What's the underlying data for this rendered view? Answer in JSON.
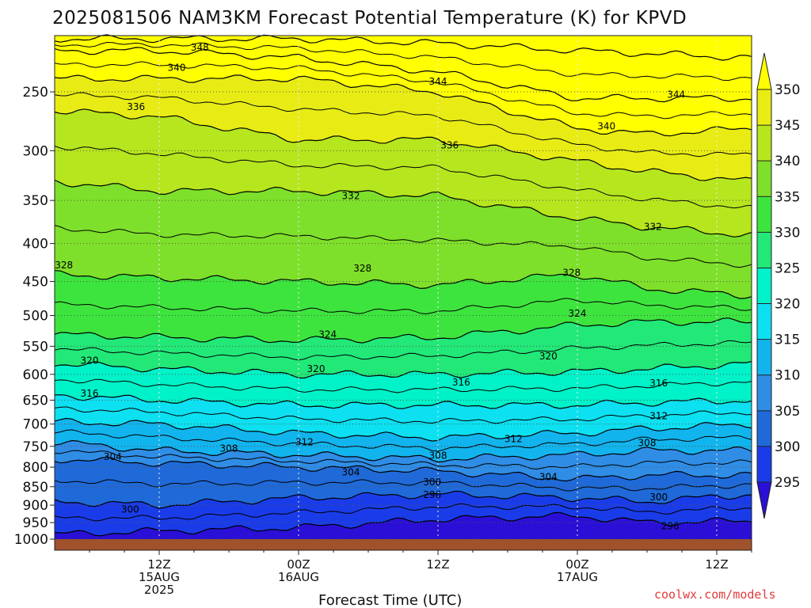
{
  "title": "2025081506 NAM3KM Forecast Potential Temperature (K) for KPVD",
  "x_axis_title": "Forecast Time (UTC)",
  "credit": "coolwx.com/models",
  "colors": {
    "ground": "#a0522d",
    "bands": [
      "#2a0fd6",
      "#1a3ce8",
      "#1f6ad8",
      "#2f8de6",
      "#12b4ee",
      "#0de0f0",
      "#00f2c8",
      "#22e878",
      "#3ee43e",
      "#7ee02a",
      "#b6e61e",
      "#e8ec14",
      "#ffff00"
    ]
  },
  "chart_data": {
    "type": "heatmap",
    "variable": "Potential Temperature (K)",
    "y_scale": "log-pressure (reversed)",
    "y_ticks": [
      250,
      300,
      350,
      400,
      450,
      500,
      550,
      600,
      650,
      700,
      750,
      800,
      850,
      900,
      950,
      1000
    ],
    "y_range": [
      1000,
      210
    ],
    "x_range_hours": [
      -3,
      57
    ],
    "x_ticks": [
      {
        "hour": 6,
        "lines": [
          "12Z",
          "15AUG",
          "2025"
        ]
      },
      {
        "hour": 18,
        "lines": [
          "00Z",
          "16AUG"
        ]
      },
      {
        "hour": 30,
        "lines": [
          "12Z"
        ]
      },
      {
        "hour": 42,
        "lines": [
          "00Z",
          "17AUG"
        ]
      },
      {
        "hour": 54,
        "lines": [
          "12Z"
        ]
      }
    ],
    "grid": true,
    "colorbar": {
      "levels": [
        295,
        300,
        305,
        310,
        315,
        320,
        325,
        330,
        335,
        340,
        345,
        350
      ],
      "labels": [
        "295",
        "300",
        "305",
        "310",
        "315",
        "320",
        "325",
        "330",
        "335",
        "340",
        "345",
        "350"
      ]
    },
    "isentrope_levels": [
      296,
      300,
      304,
      308,
      312,
      316,
      320,
      324,
      328,
      332,
      336,
      340,
      344,
      348
    ],
    "isentrope_pressure_profile": {
      "hours": [
        -3,
        6,
        18,
        30,
        42,
        48,
        57
      ],
      "pressures": {
        "296": [
          985,
          975,
          965,
          940,
          930,
          950,
          945
        ],
        "300": [
          890,
          900,
          880,
          870,
          880,
          890,
          870
        ],
        "304": [
          780,
          790,
          800,
          810,
          830,
          820,
          820
        ],
        "308": [
          740,
          760,
          770,
          780,
          770,
          760,
          760
        ],
        "312": [
          695,
          700,
          720,
          730,
          720,
          710,
          700
        ],
        "316": [
          640,
          650,
          660,
          660,
          660,
          655,
          650
        ],
        "320": [
          580,
          590,
          600,
          600,
          595,
          590,
          580
        ],
        "324": [
          530,
          535,
          540,
          535,
          515,
          510,
          510
        ],
        "328": [
          440,
          445,
          450,
          455,
          440,
          460,
          470
        ],
        "332": [
          330,
          340,
          340,
          345,
          370,
          380,
          390
        ],
        "336": [
          265,
          270,
          290,
          290,
          310,
          320,
          330
        ],
        "340": [
          240,
          240,
          240,
          250,
          280,
          285,
          280
        ],
        "344": [
          220,
          220,
          225,
          235,
          255,
          255,
          255
        ],
        "348": [
          212,
          212,
          212,
          215,
          220,
          222,
          225
        ]
      }
    },
    "contour_labels": [
      {
        "text": "348",
        "hour": 9.5,
        "p": 218
      },
      {
        "text": "340",
        "hour": 7.5,
        "p": 232
      },
      {
        "text": "344",
        "hour": 30,
        "p": 242
      },
      {
        "text": "344",
        "hour": 50.5,
        "p": 252
      },
      {
        "text": "336",
        "hour": 4,
        "p": 262
      },
      {
        "text": "340",
        "hour": 44.5,
        "p": 278
      },
      {
        "text": "336",
        "hour": 31,
        "p": 295
      },
      {
        "text": "332",
        "hour": 22.5,
        "p": 345
      },
      {
        "text": "332",
        "hour": 48.5,
        "p": 380
      },
      {
        "text": "328",
        "hour": -2.2,
        "p": 428
      },
      {
        "text": "328",
        "hour": 23.5,
        "p": 432
      },
      {
        "text": "328",
        "hour": 41.5,
        "p": 438
      },
      {
        "text": "324",
        "hour": 42,
        "p": 497
      },
      {
        "text": "324",
        "hour": 20.5,
        "p": 530
      },
      {
        "text": "320",
        "hour": 0,
        "p": 575
      },
      {
        "text": "320",
        "hour": 19.5,
        "p": 590
      },
      {
        "text": "320",
        "hour": 39.5,
        "p": 567
      },
      {
        "text": "316",
        "hour": 0,
        "p": 637
      },
      {
        "text": "316",
        "hour": 32,
        "p": 615
      },
      {
        "text": "316",
        "hour": 49,
        "p": 617
      },
      {
        "text": "312",
        "hour": 49,
        "p": 683
      },
      {
        "text": "312",
        "hour": 18.5,
        "p": 740
      },
      {
        "text": "312",
        "hour": 36.5,
        "p": 733
      },
      {
        "text": "308",
        "hour": 48,
        "p": 742
      },
      {
        "text": "308",
        "hour": 12,
        "p": 755
      },
      {
        "text": "308",
        "hour": 30,
        "p": 772
      },
      {
        "text": "304",
        "hour": 2,
        "p": 775
      },
      {
        "text": "304",
        "hour": 22.5,
        "p": 813
      },
      {
        "text": "304",
        "hour": 39.5,
        "p": 825
      },
      {
        "text": "300",
        "hour": 29.5,
        "p": 838
      },
      {
        "text": "300",
        "hour": 49,
        "p": 878
      },
      {
        "text": "300",
        "hour": 3.5,
        "p": 912
      },
      {
        "text": "296",
        "hour": 29.5,
        "p": 872
      },
      {
        "text": "296",
        "hour": 50,
        "p": 960
      }
    ]
  }
}
